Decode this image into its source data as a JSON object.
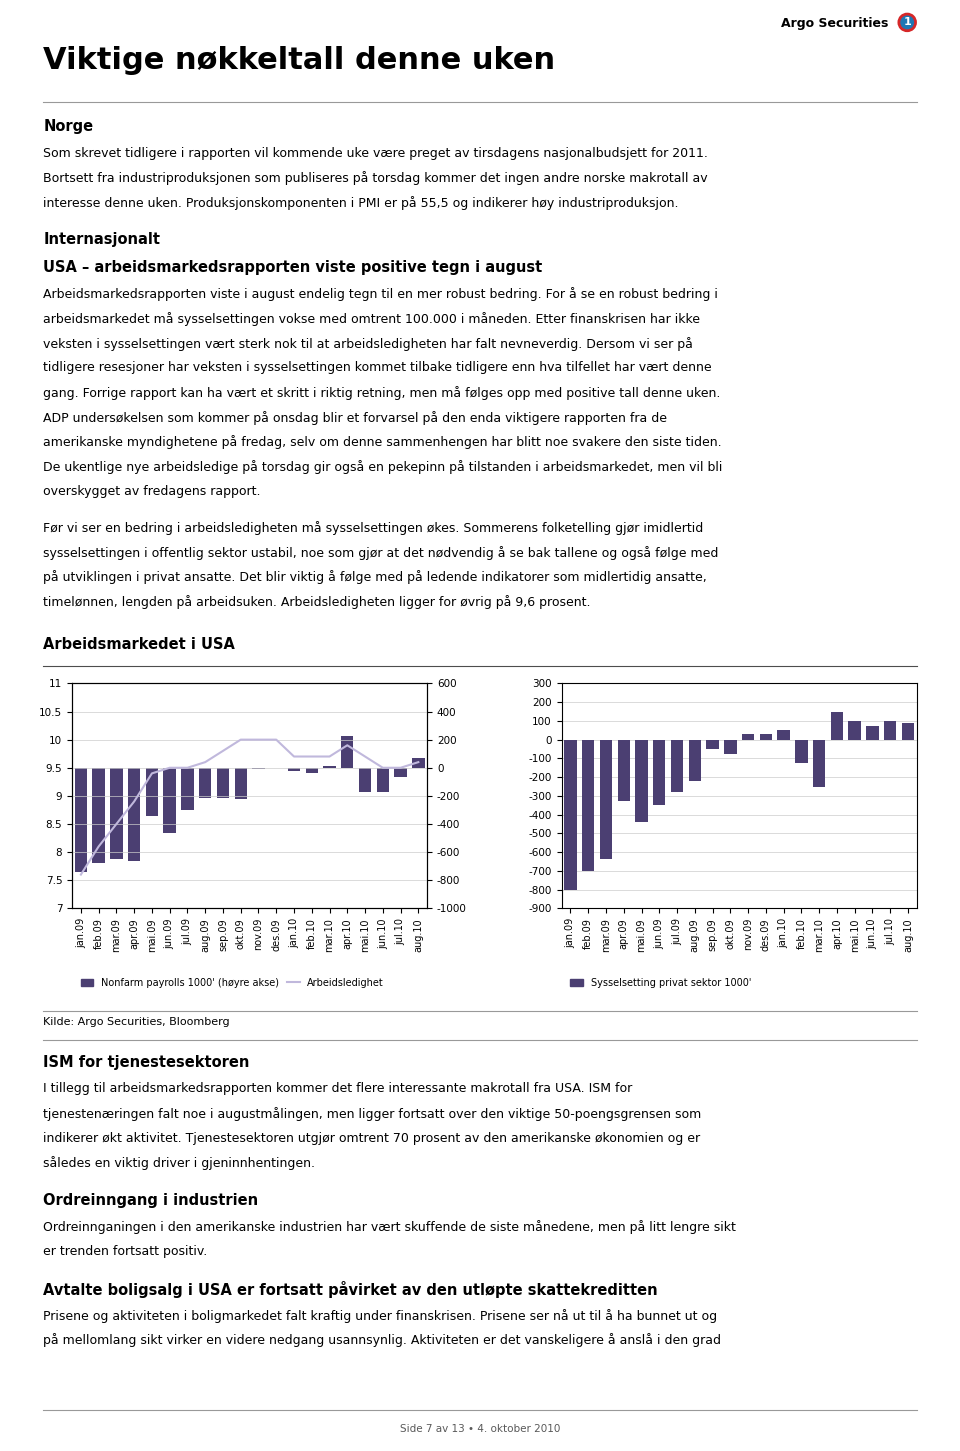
{
  "title": "Viktige nøkkeltall denne uken",
  "logo": [
    "Argo Securities",
    "1"
  ],
  "text_before": [
    {
      "heading": "Norge",
      "lines": [
        "Som skrevet tidligere i rapporten vil kommende uke være preget av tirsdagens nasjonalbudsjett for 2011.",
        "Bortsett fra industriproduksjonen som publiseres på torsdag kommer det ingen andre norske makrotall av",
        "interesse denne uken. Produksjonskomponenten i PMI er på 55,5 og indikerer høy industriproduksjon."
      ]
    },
    {
      "heading": "Internasjonalt"
    },
    {
      "heading": "USA – arbeidsmarkedsrapporten viste positive tegn i august",
      "lines": [
        "Arbeidsmarkedsrapporten viste i august endelig tegn til en mer robust bedring. For å se en robust bedring i",
        "arbeidsmarkedet må sysselsettingen vokse med omtrent 100.000 i måneden. Etter finanskrisen har ikke",
        "veksten i sysselsettingen vært sterk nok til at arbeidsledigheten har falt nevneverdig. Dersom vi ser på",
        "tidligere resesjoner har veksten i sysselsettingen kommet tilbake tidligere enn hva tilfellet har vært denne",
        "gang. Forrige rapport kan ha vært et skritt i riktig retning, men må følges opp med positive tall denne uken.",
        "ADP undersøkelsen som kommer på onsdag blir et forvarsel på den enda viktigere rapporten fra de",
        "amerikanske myndighetene på fredag, selv om denne sammenhengen har blitt noe svakere den siste tiden.",
        "De ukentlige nye arbeidsledige på torsdag gir også en pekepinn på tilstanden i arbeidsmarkedet, men vil bli",
        "overskygget av fredagens rapport."
      ]
    },
    {
      "lines": [
        "Før vi ser en bedring i arbeidsledigheten må sysselsettingen økes. Sommerens folketelling gjør imidlertid",
        "sysselsettingen i offentlig sektor ustabil, noe som gjør at det nødvendig å se bak tallene og også følge med",
        "på utviklingen i privat ansatte. Det blir viktig å følge med på ledende indikatorer som midlertidig ansatte,",
        "timelønnen, lengden på arbeidsuken. Arbeidsledigheten ligger for øvrig på 9,6 prosent."
      ]
    }
  ],
  "chart_title": "Arbeidsmarkedet i USA",
  "chart_data": [
    {
      "type": "bar",
      "categories": [
        "jan.09",
        "feb.09",
        "mar.09",
        "apr.09",
        "mai.09",
        "jun.09",
        "jul.09",
        "aug.09",
        "sep.09",
        "okt.09",
        "nov.09",
        "des.09",
        "jan.10",
        "feb.10",
        "mar.10",
        "apr.10",
        "mai.10",
        "jun.10",
        "jul.10",
        "aug.10"
      ],
      "series": [
        {
          "name": "Nonfarm payrolls 1000' (høyre akse)",
          "type": "bar",
          "axis": "y2",
          "color": "#4B3F72",
          "values": [
            -741,
            -681,
            -652,
            -663,
            -345,
            -467,
            -304,
            -216,
            -214,
            -224,
            -11,
            -1,
            -26,
            -35,
            13,
            229,
            -175,
            -175,
            -66,
            67
          ]
        },
        {
          "name": "Arbeidsledighet",
          "type": "line",
          "color": "#C0B8DC",
          "values": [
            7.6,
            8.1,
            8.5,
            8.9,
            9.4,
            9.5,
            9.5,
            9.6,
            9.8,
            10.0,
            10.0,
            10.0,
            9.7,
            9.7,
            9.7,
            9.9,
            9.7,
            9.5,
            9.5,
            9.6
          ]
        }
      ],
      "ylim": [
        7,
        11
      ],
      "yticks": [
        7,
        7.5,
        8,
        8.5,
        9,
        9.5,
        10,
        10.5,
        11
      ],
      "y2lim": [
        -1000,
        600
      ],
      "y2ticks": [
        -1000,
        -800,
        -600,
        -400,
        -200,
        0,
        200,
        400,
        600
      ],
      "grid": true,
      "legend": "upper left"
    },
    {
      "type": "bar",
      "categories": [
        "jan.09",
        "feb.09",
        "mar.09",
        "apr.09",
        "mai.09",
        "jun.09",
        "jul.09",
        "aug.09",
        "sep.09",
        "okt.09",
        "nov.09",
        "des.09",
        "jan.10",
        "feb.10",
        "mar.10",
        "apr.10",
        "mai.10",
        "jun.10",
        "jul.10",
        "aug.10"
      ],
      "series": [
        {
          "name": "Sysselsetting privat sektor 1000'",
          "color": "#4B3F72",
          "values": [
            -800,
            -700,
            -635,
            -325,
            -440,
            -350,
            -280,
            -220,
            -50,
            -75,
            30,
            30,
            50,
            -125,
            -250,
            150,
            100,
            75,
            100,
            90
          ]
        }
      ],
      "ylim": [
        -900,
        300
      ],
      "yticks": [
        -900,
        -800,
        -700,
        -600,
        -500,
        -400,
        -300,
        -200,
        -100,
        0,
        100,
        200,
        300
      ],
      "grid": true,
      "legend": "upper left"
    }
  ],
  "source": "Kilde: Argo Securities, Bloomberg",
  "text_after": [
    {
      "heading": "ISM for tjenestesektoren",
      "lines": [
        "I tillegg til arbeidsmarkedsrapporten kommer det flere interessante makrotall fra USA. ISM for",
        "tjenestenæringen falt noe i augustmålingen, men ligger fortsatt over den viktige 50-poengsgrensen som",
        "indikerer økt aktivitet. Tjenestesektoren utgjør omtrent 70 prosent av den amerikanske økonomien og er",
        "således en viktig driver i gjeninnhentingen."
      ]
    },
    {
      "heading": "Ordreinngang i industrien",
      "lines": [
        "Ordreinnganingen i den amerikanske industrien har vært skuffende de siste månedene, men på litt lengre sikt",
        "er trenden fortsatt positiv."
      ]
    },
    {
      "heading": "Avtalte boligsalg i USA er fortsatt påvirket av den utløpte skattekreditten",
      "lines": [
        "Prisene og aktiviteten i boligmarkedet falt kraftig under finanskrisen. Prisene ser nå ut til å ha bunnet ut og",
        "på mellomlang sikt virker en videre nedgang usannsynlig. Aktiviteten er det vanskeligere å anslå i den grad"
      ]
    }
  ],
  "footer": "Side 7 av 13 • 4. oktober 2010"
}
